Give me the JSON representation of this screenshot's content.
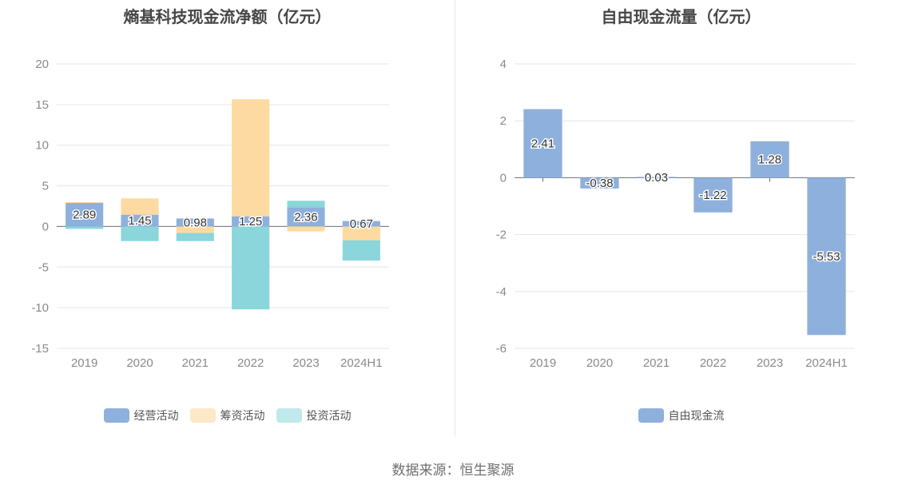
{
  "left_chart": {
    "title": "熵基科技现金流净额（亿元）",
    "legend": [
      {
        "label": "经营活动",
        "color": "#8eb0dc"
      },
      {
        "label": "筹资活动",
        "color": "#fddaa1"
      },
      {
        "label": "投资活动",
        "color": "#8ad6da"
      }
    ]
  },
  "right_chart": {
    "title": "自由现金流量（亿元）",
    "legend": [
      {
        "label": "自由现金流",
        "color": "#8eb0dc"
      }
    ]
  },
  "source": "数据来源：恒生聚源",
  "chart_data": [
    {
      "type": "bar",
      "stacked": true,
      "title": "熵基科技现金流净额（亿元）",
      "categories": [
        "2019",
        "2020",
        "2021",
        "2022",
        "2023",
        "2024H1"
      ],
      "ylim": [
        -15,
        20
      ],
      "yticks": [
        20,
        15,
        10,
        5,
        0,
        -5,
        -10,
        -15
      ],
      "grid": true,
      "legend_position": "bottom",
      "series": [
        {
          "name": "经营活动",
          "color": "#8eb0dc",
          "values": [
            2.89,
            1.45,
            0.98,
            1.25,
            2.36,
            0.67
          ]
        },
        {
          "name": "筹资活动",
          "color": "#fddaa1",
          "values": [
            0.1,
            2.0,
            -0.8,
            14.4,
            -0.6,
            -1.7
          ]
        },
        {
          "name": "投资活动",
          "color": "#8ad6da",
          "values": [
            -0.3,
            -1.8,
            -1.0,
            -10.2,
            0.8,
            -2.5
          ]
        }
      ],
      "data_labels": [
        "2.89",
        "1.45",
        "0.98",
        "1.25",
        "2.36",
        "0.67"
      ]
    },
    {
      "type": "bar",
      "title": "自由现金流量（亿元）",
      "categories": [
        "2019",
        "2020",
        "2021",
        "2022",
        "2023",
        "2024H1"
      ],
      "ylim": [
        -6,
        4
      ],
      "yticks": [
        4,
        2,
        0,
        -2,
        -4,
        -6
      ],
      "grid": true,
      "legend_position": "bottom",
      "series": [
        {
          "name": "自由现金流",
          "color": "#8eb0dc",
          "values": [
            2.41,
            -0.38,
            0.03,
            -1.22,
            1.28,
            -5.53
          ]
        }
      ],
      "data_labels": [
        "2.41",
        "-0.38",
        "0.03",
        "-1.22",
        "1.28",
        "-5.53"
      ]
    }
  ]
}
